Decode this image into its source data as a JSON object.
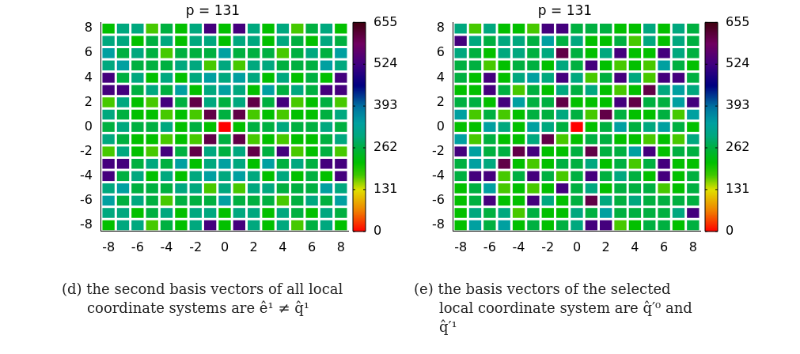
{
  "chart_data": [
    {
      "type": "heatmap",
      "title": "p = 131",
      "categories": [
        "-8",
        null,
        "-6",
        null,
        "-4",
        null,
        "-2",
        null,
        "0",
        null,
        "2",
        null,
        "4",
        null,
        "6",
        null,
        "8"
      ],
      "y_categories": [
        "8",
        null,
        "6",
        null,
        "4",
        null,
        "2",
        null,
        "0",
        null,
        "-2",
        null,
        "-4",
        null,
        "-6",
        null,
        "-8"
      ],
      "cells": [
        [
          215,
          300,
          300,
          175,
          262,
          215,
          300,
          530,
          215,
          530,
          300,
          215,
          300,
          175,
          262,
          300,
          215
        ],
        [
          300,
          300,
          215,
          262,
          300,
          215,
          300,
          300,
          215,
          300,
          300,
          215,
          300,
          262,
          215,
          300,
          262
        ],
        [
          340,
          262,
          300,
          262,
          175,
          262,
          262,
          262,
          340,
          262,
          262,
          262,
          175,
          262,
          300,
          262,
          340
        ],
        [
          300,
          340,
          262,
          262,
          262,
          300,
          300,
          175,
          300,
          175,
          300,
          300,
          262,
          262,
          262,
          340,
          300
        ],
        [
          530,
          262,
          300,
          215,
          300,
          215,
          300,
          340,
          300,
          340,
          300,
          215,
          300,
          215,
          262,
          215,
          530
        ],
        [
          530,
          530,
          262,
          300,
          262,
          340,
          215,
          300,
          340,
          300,
          215,
          340,
          262,
          300,
          262,
          530,
          530
        ],
        [
          175,
          300,
          215,
          175,
          530,
          262,
          610,
          300,
          262,
          300,
          610,
          262,
          530,
          175,
          215,
          262,
          175
        ],
        [
          300,
          262,
          215,
          215,
          175,
          215,
          175,
          610,
          262,
          610,
          175,
          215,
          175,
          215,
          215,
          262,
          300
        ],
        [
          262,
          300,
          262,
          262,
          300,
          215,
          262,
          215,
          0,
          215,
          262,
          262,
          300,
          262,
          262,
          300,
          262
        ],
        [
          300,
          262,
          215,
          215,
          175,
          215,
          175,
          610,
          262,
          610,
          175,
          215,
          175,
          215,
          215,
          262,
          300
        ],
        [
          175,
          300,
          215,
          175,
          530,
          262,
          610,
          300,
          262,
          300,
          610,
          262,
          530,
          175,
          215,
          262,
          175
        ],
        [
          530,
          530,
          262,
          300,
          262,
          340,
          215,
          300,
          340,
          300,
          215,
          340,
          262,
          300,
          262,
          530,
          530
        ],
        [
          530,
          262,
          300,
          215,
          300,
          215,
          300,
          340,
          300,
          340,
          300,
          215,
          300,
          215,
          262,
          215,
          530
        ],
        [
          300,
          340,
          262,
          262,
          262,
          300,
          300,
          175,
          300,
          175,
          300,
          300,
          262,
          262,
          262,
          340,
          300
        ],
        [
          340,
          262,
          300,
          262,
          175,
          262,
          262,
          262,
          340,
          262,
          262,
          262,
          175,
          262,
          300,
          262,
          340
        ],
        [
          300,
          300,
          215,
          262,
          300,
          215,
          300,
          300,
          215,
          300,
          300,
          215,
          300,
          262,
          215,
          300,
          262
        ],
        [
          215,
          300,
          300,
          175,
          262,
          215,
          300,
          530,
          215,
          530,
          300,
          215,
          300,
          175,
          262,
          300,
          215
        ]
      ],
      "clim": [
        0,
        655
      ],
      "cticks": [
        0,
        131,
        262,
        393,
        524,
        655
      ],
      "annotations": [
        "(d) the second basis vectors of all local coordinate systems are ê¹ ≠ q̂¹"
      ]
    },
    {
      "type": "heatmap",
      "title": "p = 131",
      "categories": [
        "-8",
        null,
        "-6",
        null,
        "-4",
        null,
        "-2",
        null,
        "0",
        null,
        "2",
        null,
        "4",
        null,
        "6",
        null,
        "8"
      ],
      "y_categories": [
        "8",
        null,
        "6",
        null,
        "4",
        null,
        "2",
        null,
        "0",
        null,
        "-2",
        null,
        "-4",
        null,
        "-6",
        null,
        "-8"
      ],
      "cells": [
        [
          300,
          175,
          300,
          215,
          215,
          175,
          530,
          530,
          262,
          262,
          262,
          215,
          215,
          300,
          215,
          300,
          262
        ],
        [
          530,
          300,
          262,
          300,
          300,
          262,
          340,
          262,
          300,
          215,
          215,
          262,
          175,
          300,
          215,
          300,
          262
        ],
        [
          300,
          262,
          215,
          300,
          300,
          262,
          300,
          610,
          262,
          215,
          300,
          530,
          215,
          215,
          530,
          300,
          262
        ],
        [
          262,
          262,
          175,
          215,
          262,
          262,
          215,
          300,
          262,
          530,
          215,
          175,
          215,
          175,
          340,
          262,
          215
        ],
        [
          262,
          215,
          530,
          215,
          300,
          340,
          300,
          530,
          300,
          175,
          262,
          530,
          300,
          175,
          530,
          530,
          262
        ],
        [
          215,
          215,
          530,
          262,
          175,
          262,
          215,
          300,
          262,
          300,
          215,
          175,
          215,
          610,
          300,
          340,
          300
        ],
        [
          262,
          262,
          215,
          530,
          340,
          262,
          262,
          610,
          215,
          215,
          215,
          530,
          610,
          262,
          262,
          340,
          530
        ],
        [
          340,
          175,
          262,
          175,
          215,
          262,
          262,
          300,
          262,
          175,
          610,
          262,
          215,
          215,
          262,
          175,
          340
        ],
        [
          215,
          215,
          340,
          300,
          215,
          340,
          300,
          262,
          0,
          215,
          262,
          340,
          262,
          300,
          340,
          262,
          215
        ],
        [
          340,
          175,
          262,
          215,
          215,
          300,
          610,
          175,
          215,
          262,
          262,
          215,
          215,
          175,
          215,
          175,
          300
        ],
        [
          530,
          340,
          262,
          262,
          610,
          530,
          215,
          215,
          262,
          610,
          262,
          262,
          340,
          530,
          215,
          262,
          262
        ],
        [
          262,
          340,
          300,
          610,
          215,
          175,
          215,
          262,
          262,
          300,
          215,
          262,
          175,
          262,
          530,
          215,
          215
        ],
        [
          262,
          530,
          530,
          175,
          262,
          530,
          262,
          175,
          262,
          530,
          262,
          300,
          262,
          215,
          530,
          215,
          262
        ],
        [
          215,
          262,
          340,
          175,
          215,
          175,
          215,
          530,
          262,
          300,
          215,
          262,
          262,
          262,
          175,
          215,
          262
        ],
        [
          215,
          262,
          530,
          215,
          215,
          530,
          300,
          215,
          262,
          610,
          300,
          262,
          300,
          262,
          262,
          262,
          262
        ],
        [
          215,
          300,
          262,
          300,
          175,
          262,
          215,
          215,
          300,
          262,
          340,
          262,
          262,
          262,
          262,
          300,
          530
        ],
        [
          215,
          340,
          262,
          340,
          215,
          262,
          215,
          262,
          300,
          530,
          530,
          175,
          215,
          262,
          262,
          215,
          262
        ]
      ],
      "clim": [
        0,
        655
      ],
      "cticks": [
        0,
        131,
        262,
        393,
        524,
        655
      ],
      "annotations": [
        "(e) the basis vectors of the selected local coordinate system are q̂′⁰ and q̂′¹"
      ]
    }
  ]
}
